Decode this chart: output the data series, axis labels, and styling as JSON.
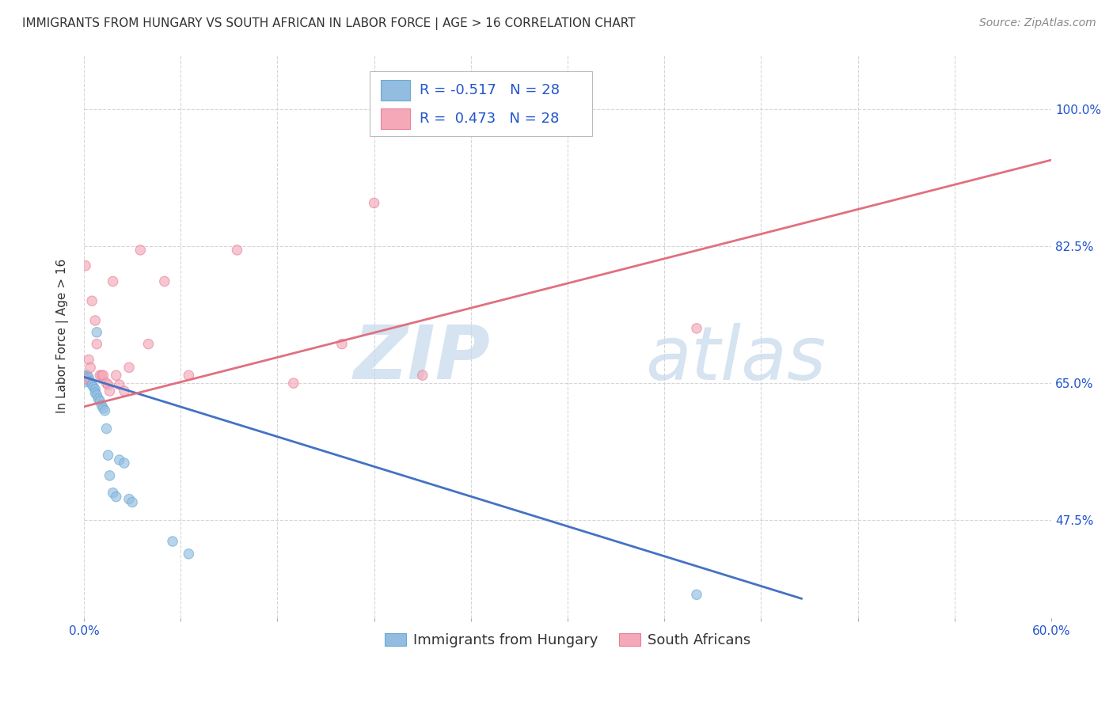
{
  "title": "IMMIGRANTS FROM HUNGARY VS SOUTH AFRICAN IN LABOR FORCE | AGE > 16 CORRELATION CHART",
  "source": "Source: ZipAtlas.com",
  "ylabel": "In Labor Force | Age > 16",
  "xmin": 0.0,
  "xmax": 0.6,
  "ymin": 0.35,
  "ymax": 1.07,
  "ytick_positions": [
    0.475,
    0.65,
    0.825,
    1.0
  ],
  "ytick_labels": [
    "47.5%",
    "65.0%",
    "82.5%",
    "100.0%"
  ],
  "xtick_positions": [
    0.0,
    0.06,
    0.12,
    0.18,
    0.24,
    0.3,
    0.36,
    0.42,
    0.48,
    0.54,
    0.6
  ],
  "xtick_edge_labels": [
    "0.0%",
    "60.0%"
  ],
  "hungary_scatter": {
    "x": [
      0.0,
      0.001,
      0.002,
      0.003,
      0.004,
      0.005,
      0.006,
      0.007,
      0.007,
      0.008,
      0.008,
      0.009,
      0.01,
      0.011,
      0.012,
      0.013,
      0.014,
      0.015,
      0.016,
      0.018,
      0.02,
      0.022,
      0.025,
      0.028,
      0.03,
      0.055,
      0.065,
      0.38
    ],
    "y": [
      0.655,
      0.658,
      0.66,
      0.657,
      0.652,
      0.648,
      0.645,
      0.642,
      0.638,
      0.635,
      0.715,
      0.63,
      0.627,
      0.622,
      0.618,
      0.615,
      0.592,
      0.558,
      0.532,
      0.51,
      0.505,
      0.552,
      0.548,
      0.502,
      0.498,
      0.448,
      0.432,
      0.38
    ],
    "sizes": [
      200,
      80,
      80,
      80,
      80,
      80,
      80,
      80,
      80,
      80,
      80,
      80,
      80,
      80,
      80,
      80,
      80,
      80,
      80,
      80,
      80,
      80,
      80,
      80,
      80,
      80,
      80,
      80
    ],
    "color": "#93bde0",
    "edgecolor": "#6aaad4",
    "alpha": 0.65
  },
  "southafrica_scatter": {
    "x": [
      0.0,
      0.001,
      0.003,
      0.004,
      0.005,
      0.007,
      0.008,
      0.01,
      0.011,
      0.012,
      0.014,
      0.015,
      0.016,
      0.018,
      0.02,
      0.022,
      0.025,
      0.028,
      0.035,
      0.04,
      0.05,
      0.065,
      0.095,
      0.13,
      0.16,
      0.18,
      0.21,
      0.38
    ],
    "y": [
      0.655,
      0.8,
      0.68,
      0.67,
      0.755,
      0.73,
      0.7,
      0.66,
      0.66,
      0.66,
      0.65,
      0.648,
      0.64,
      0.78,
      0.66,
      0.648,
      0.64,
      0.67,
      0.82,
      0.7,
      0.78,
      0.66,
      0.82,
      0.65,
      0.7,
      0.88,
      0.66,
      0.72
    ],
    "sizes": [
      80,
      80,
      80,
      80,
      80,
      80,
      80,
      80,
      80,
      80,
      80,
      80,
      80,
      80,
      80,
      80,
      80,
      80,
      80,
      80,
      80,
      80,
      80,
      80,
      80,
      80,
      80,
      80
    ],
    "color": "#f4a8b8",
    "edgecolor": "#e88098",
    "alpha": 0.65
  },
  "hungary_trend": {
    "x": [
      0.0,
      0.445
    ],
    "y": [
      0.658,
      0.375
    ],
    "color": "#4472c4",
    "linewidth": 2.0
  },
  "southafrica_trend": {
    "x": [
      0.0,
      0.6
    ],
    "y": [
      0.62,
      0.935
    ],
    "color": "#e07080",
    "linewidth": 2.0
  },
  "watermark_zip_color": "#c5d8ec",
  "watermark_atlas_color": "#c5d8ec",
  "background_color": "#ffffff",
  "grid_color": "#cccccc",
  "title_fontsize": 11,
  "axis_label_fontsize": 11,
  "tick_fontsize": 11,
  "legend_fontsize": 13,
  "source_fontsize": 10
}
